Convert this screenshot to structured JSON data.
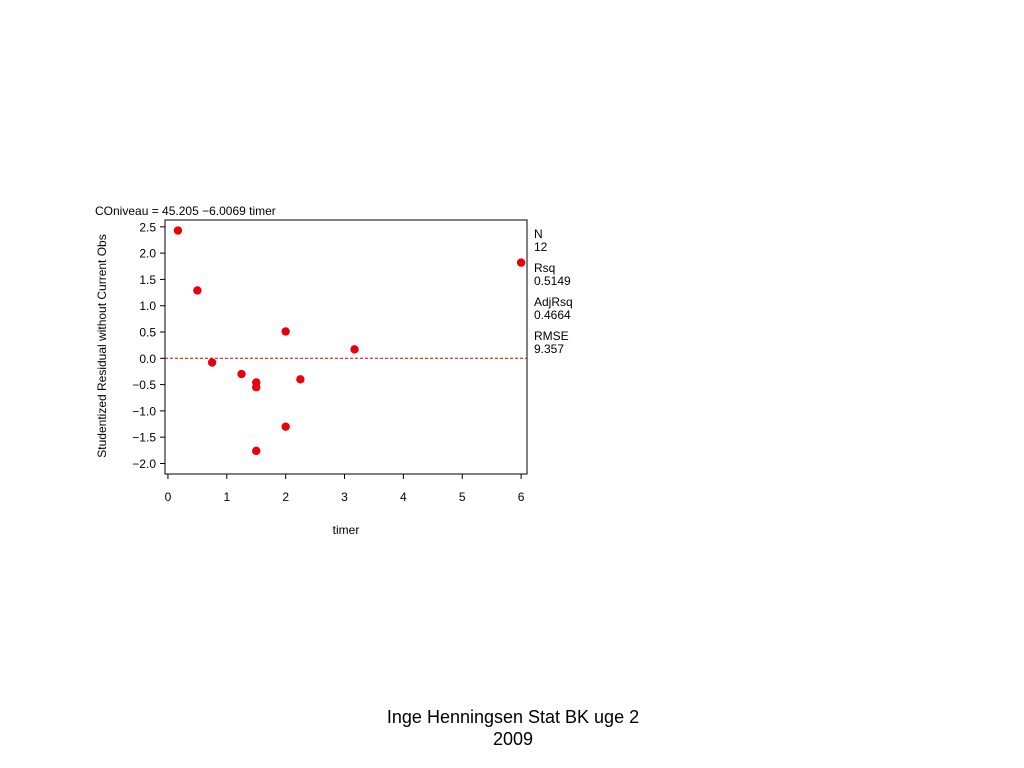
{
  "chart_data": {
    "type": "scatter",
    "title": "COniveau  =  45.205  −6.0069 timer",
    "xlabel": "timer",
    "ylabel": "Studentized Residual without Current Obs",
    "xlim": [
      -0.05,
      6.1
    ],
    "ylim": [
      -2.2,
      2.63
    ],
    "x_ticks": [
      0,
      1,
      2,
      3,
      4,
      5,
      6
    ],
    "y_ticks": [
      2.5,
      2.0,
      1.5,
      1.0,
      0.5,
      0.0,
      -0.5,
      -1.0,
      -1.5,
      -2.0
    ],
    "x_tick_labels": [
      "0",
      "1",
      "2",
      "3",
      "4",
      "5",
      "6"
    ],
    "y_tick_labels": [
      "2.5",
      "2.0",
      "1.5",
      "1.0",
      "0.5",
      "0.0",
      "−0.5",
      "−1.0",
      "−1.5",
      "−2.0"
    ],
    "reference_line_y": 0.0,
    "grid": false,
    "point_color": "#e8000b",
    "reference_line_color": "#d00000",
    "points": [
      {
        "x": 0.17,
        "y": 2.43
      },
      {
        "x": 0.5,
        "y": 1.29
      },
      {
        "x": 0.75,
        "y": -0.08
      },
      {
        "x": 1.25,
        "y": -0.3
      },
      {
        "x": 1.5,
        "y": -0.46
      },
      {
        "x": 1.5,
        "y": -0.55
      },
      {
        "x": 1.5,
        "y": -1.76
      },
      {
        "x": 2.0,
        "y": 0.51
      },
      {
        "x": 2.0,
        "y": -1.3
      },
      {
        "x": 2.25,
        "y": -0.4
      },
      {
        "x": 3.17,
        "y": 0.17
      },
      {
        "x": 6.0,
        "y": 1.82
      }
    ],
    "stats": [
      {
        "label": "N",
        "value": "12"
      },
      {
        "label": "Rsq",
        "value": "0.5149"
      },
      {
        "label": "AdjRsq",
        "value": "0.4664"
      },
      {
        "label": "RMSE",
        "value": "9.357"
      }
    ]
  },
  "footer": {
    "line1": "Inge Henningsen Stat BK uge 2",
    "line2": "2009"
  }
}
